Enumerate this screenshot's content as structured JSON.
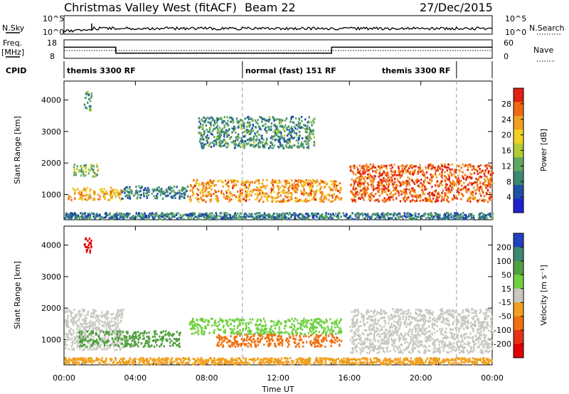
{
  "header": {
    "station": "Christmas Valley West (fitACF)",
    "beam": "Beam 22",
    "date": "27/Dec/2015"
  },
  "top_panels": {
    "nsky_label": "N.Sky",
    "nsky_ticks": [
      "10^5",
      "10^0"
    ],
    "nsearch_label": "N.Search",
    "nsearch_ticks": [
      "10^5",
      "10^0"
    ],
    "freq_label": "Freq.",
    "freq_unit": "[MHz]",
    "freq_ticks": [
      18,
      8
    ],
    "nave_label": "Nave",
    "nave_ticks": [
      60,
      0
    ],
    "cpid_label": "CPID"
  },
  "chart_data": {
    "type": "heatmap",
    "x_axis": {
      "label": "Time UT",
      "range_hours": [
        0,
        24
      ],
      "tick_labels": [
        "00:00",
        "04:00",
        "08:00",
        "12:00",
        "16:00",
        "20:00",
        "00:00"
      ]
    },
    "frequency_mhz": [
      {
        "start_h": 0,
        "end_h": 2.9,
        "value": 14
      },
      {
        "start_h": 2.9,
        "end_h": 15,
        "value": 10.8
      },
      {
        "start_h": 15,
        "end_h": 24,
        "value": 14
      }
    ],
    "cpid_segments": [
      {
        "label": "themis 3300 RF",
        "start_h": 0,
        "end_h": 10
      },
      {
        "label": "normal (fast) 151 RF",
        "start_h": 10,
        "end_h": 22
      },
      {
        "label": "themis 3300 RF",
        "start_h": 22,
        "end_h": 24
      }
    ],
    "mode_change_hours": [
      10,
      22
    ],
    "panels": [
      {
        "quantity": "power",
        "ylabel": "Slant Range [km]",
        "yticks": [
          1000,
          2000,
          3000,
          4000
        ],
        "ylim": [
          200,
          4600
        ],
        "colorbar_label": "Power [dB]",
        "colorbar_ticks": [
          4,
          8,
          12,
          16,
          20,
          24,
          28
        ],
        "colorbar_range": [
          0,
          32
        ],
        "colorbar_colors": [
          "#2020d0",
          "#2050a8",
          "#3c8870",
          "#60a860",
          "#b0cc30",
          "#f0d020",
          "#f0a020",
          "#f06a10",
          "#e02010"
        ],
        "scatter_features": [
          {
            "name": "near-range band",
            "t_start": 0.2,
            "t_end": 3.2,
            "range_start": 850,
            "range_end": 1250,
            "level": 22
          },
          {
            "name": "morning band",
            "t_start": 0.5,
            "t_end": 1.9,
            "range_start": 1600,
            "range_end": 2000,
            "level": 14
          },
          {
            "name": "early high-range echoes",
            "t_start": 1.1,
            "t_end": 1.5,
            "range_start": 3700,
            "range_end": 4300,
            "level": 10
          },
          {
            "name": "night band",
            "t_start": 3.2,
            "t_end": 7,
            "range_start": 900,
            "range_end": 1300,
            "level": 9
          },
          {
            "name": "evening trough band",
            "t_start": 7,
            "t_end": 15.5,
            "range_start": 800,
            "range_end": 1500,
            "level": 24
          },
          {
            "name": "high-range patches",
            "t_start": 7.5,
            "t_end": 14,
            "range_start": 2500,
            "range_end": 3500,
            "level": 10
          },
          {
            "name": "afternoon band",
            "t_start": 16,
            "t_end": 24,
            "range_start": 800,
            "range_end": 2000,
            "level": 27
          },
          {
            "name": "ground scatter near range",
            "t_start": 0,
            "t_end": 24,
            "range_start": 250,
            "range_end": 450,
            "level": 8
          }
        ]
      },
      {
        "quantity": "velocity",
        "ylabel": "Slant Range [km]",
        "yticks": [
          1000,
          2000,
          3000,
          4000
        ],
        "ylim": [
          200,
          4600
        ],
        "colorbar_label": "Velocity [m s⁻¹]",
        "colorbar_ticks": [
          200,
          100,
          50,
          15,
          -15,
          -50,
          -100,
          -200
        ],
        "colorbar_colors": [
          "#2040c0",
          "#3c8870",
          "#50a040",
          "#70d040",
          "#c8c8c0",
          "#f0a020",
          "#f07010",
          "#e83018",
          "#e00000"
        ],
        "scatter_features": [
          {
            "name": "near-range ground scatter",
            "t_start": 0,
            "t_end": 3.3,
            "range_start": 700,
            "range_end": 2000,
            "level": 0
          },
          {
            "name": "green band",
            "t_start": 0.8,
            "t_end": 6.5,
            "range_start": 800,
            "range_end": 1300,
            "level": 60
          },
          {
            "name": "red high-range echoes",
            "t_start": 1.1,
            "t_end": 1.5,
            "range_start": 3700,
            "range_end": 4300,
            "level": -220
          },
          {
            "name": "evening green band",
            "t_start": 7,
            "t_end": 15.5,
            "range_start": 1200,
            "range_end": 1700,
            "level": 40
          },
          {
            "name": "evening orange band",
            "t_start": 8.5,
            "t_end": 15.5,
            "range_start": 800,
            "range_end": 1200,
            "level": -60
          },
          {
            "name": "afternoon ground scatter",
            "t_start": 16,
            "t_end": 24,
            "range_start": 600,
            "range_end": 2000,
            "level": 0
          },
          {
            "name": "near-range orange",
            "t_start": 0,
            "t_end": 24,
            "range_start": 250,
            "range_end": 450,
            "level": -40
          }
        ]
      }
    ]
  }
}
